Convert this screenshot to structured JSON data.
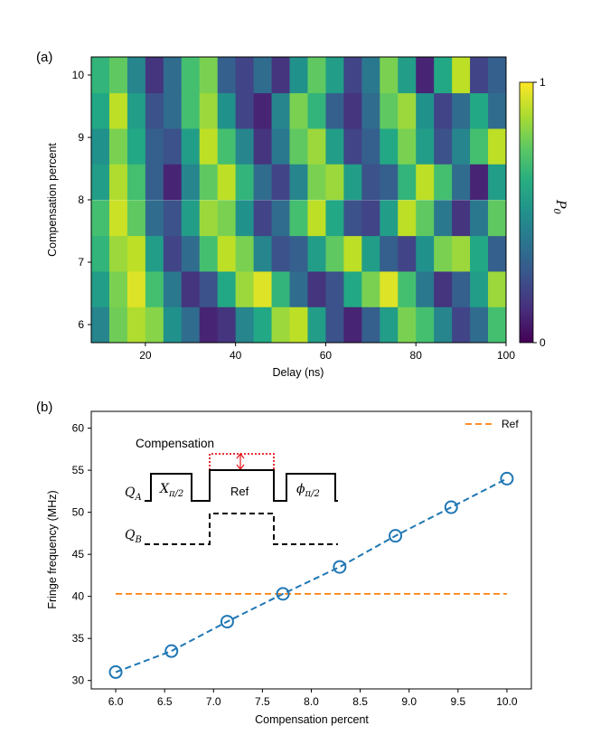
{
  "chart_data": [
    {
      "panel": "(a)",
      "type": "heatmap",
      "xlabel": "Delay (ns)",
      "ylabel": "Compensation percent",
      "xticks": [
        20,
        40,
        60,
        80,
        100
      ],
      "yticks": [
        6,
        7,
        8,
        9,
        10
      ],
      "xlim": [
        8,
        100
      ],
      "ylim": [
        5.71,
        10.29
      ],
      "x": [
        10,
        14,
        18,
        22,
        26,
        30,
        34,
        38,
        42,
        46,
        50,
        54,
        58,
        62,
        66,
        70,
        74,
        78,
        82,
        86,
        90,
        94,
        98
      ],
      "y": [
        6.0,
        6.57,
        7.14,
        7.71,
        8.29,
        8.86,
        9.43,
        10.0
      ],
      "z": [
        [
          0.45,
          0.78,
          0.88,
          0.82,
          0.5,
          0.35,
          0.1,
          0.15,
          0.45,
          0.6,
          0.85,
          0.9,
          0.55,
          0.25,
          0.1,
          0.3,
          0.55,
          0.8,
          0.7,
          0.45,
          0.2,
          0.35,
          0.7
        ],
        [
          0.55,
          0.8,
          0.95,
          0.7,
          0.4,
          0.15,
          0.25,
          0.6,
          0.85,
          0.95,
          0.65,
          0.35,
          0.15,
          0.25,
          0.6,
          0.8,
          0.95,
          0.7,
          0.4,
          0.15,
          0.3,
          0.55,
          0.85
        ],
        [
          0.65,
          0.85,
          0.9,
          0.55,
          0.2,
          0.35,
          0.7,
          0.9,
          0.8,
          0.45,
          0.25,
          0.3,
          0.55,
          0.75,
          0.9,
          0.55,
          0.3,
          0.2,
          0.5,
          0.8,
          0.85,
          0.6,
          0.3
        ],
        [
          0.7,
          0.92,
          0.75,
          0.35,
          0.25,
          0.55,
          0.85,
          0.8,
          0.5,
          0.2,
          0.35,
          0.7,
          0.9,
          0.6,
          0.25,
          0.2,
          0.55,
          0.9,
          0.75,
          0.4,
          0.15,
          0.4,
          0.75
        ],
        [
          0.55,
          0.88,
          0.7,
          0.3,
          0.1,
          0.45,
          0.75,
          0.9,
          0.65,
          0.35,
          0.2,
          0.45,
          0.8,
          0.85,
          0.55,
          0.25,
          0.3,
          0.65,
          0.9,
          0.7,
          0.35,
          0.1,
          0.55
        ],
        [
          0.5,
          0.8,
          0.6,
          0.3,
          0.25,
          0.55,
          0.9,
          0.7,
          0.45,
          0.15,
          0.4,
          0.75,
          0.85,
          0.55,
          0.2,
          0.3,
          0.6,
          0.8,
          0.55,
          0.25,
          0.45,
          0.7,
          0.9
        ],
        [
          0.6,
          0.9,
          0.55,
          0.25,
          0.35,
          0.7,
          0.85,
          0.5,
          0.2,
          0.1,
          0.45,
          0.8,
          0.65,
          0.3,
          0.15,
          0.35,
          0.75,
          0.85,
          0.5,
          0.2,
          0.35,
          0.6,
          0.35
        ],
        [
          0.65,
          0.75,
          0.45,
          0.15,
          0.35,
          0.7,
          0.8,
          0.3,
          0.2,
          0.35,
          0.15,
          0.5,
          0.75,
          0.55,
          0.2,
          0.4,
          0.8,
          0.55,
          0.1,
          0.6,
          0.9,
          0.2,
          0.3
        ]
      ],
      "colorbar": {
        "label": "P0",
        "ticks": [
          "0",
          "1"
        ],
        "range": [
          0,
          1
        ],
        "colormap": "viridis"
      }
    },
    {
      "panel": "(b)",
      "type": "line",
      "xlabel": "Compensation percent",
      "ylabel": "Fringe frequency (MHz)",
      "xlim": [
        5.75,
        10.25
      ],
      "ylim": [
        29,
        62
      ],
      "xticks": [
        6.0,
        6.5,
        7.0,
        7.5,
        8.0,
        8.5,
        9.0,
        9.5,
        10.0
      ],
      "xtick_labels": [
        "6.0",
        "6.5",
        "7.0",
        "7.5",
        "8.0",
        "8.5",
        "9.0",
        "9.5",
        "10.0"
      ],
      "yticks": [
        30,
        35,
        40,
        45,
        50,
        55,
        60
      ],
      "series": [
        {
          "x": [
            6.0,
            6.57,
            7.14,
            7.71,
            8.29,
            8.86,
            9.43,
            10.0
          ],
          "y": [
            31.0,
            33.5,
            37.0,
            40.3,
            43.5,
            47.2,
            50.6,
            54.0
          ],
          "style": "markers-open-circle",
          "color": "#1f77b4"
        },
        {
          "x": [
            6.0,
            10.0
          ],
          "y": [
            31.0,
            54.0
          ],
          "style": "dashed",
          "color": "#1f77b4"
        },
        {
          "name": "Ref",
          "x": [
            6.0,
            10.0
          ],
          "y": [
            40.3,
            40.3
          ],
          "style": "dashed",
          "color": "#ff7f0e"
        }
      ],
      "legend": {
        "position": "top-right",
        "entries": [
          "Ref"
        ]
      },
      "inset": {
        "label_compensation": "Compensation",
        "label_ref": "Ref",
        "label_qa": "Q",
        "label_qa_sub": "A",
        "label_qb": "Q",
        "label_qb_sub": "B",
        "gate1": "X",
        "gate1_sub": "π/2",
        "gate2": "ϕ",
        "gate2_sub": "π/2",
        "compensation_color": "#e8141c"
      }
    }
  ]
}
